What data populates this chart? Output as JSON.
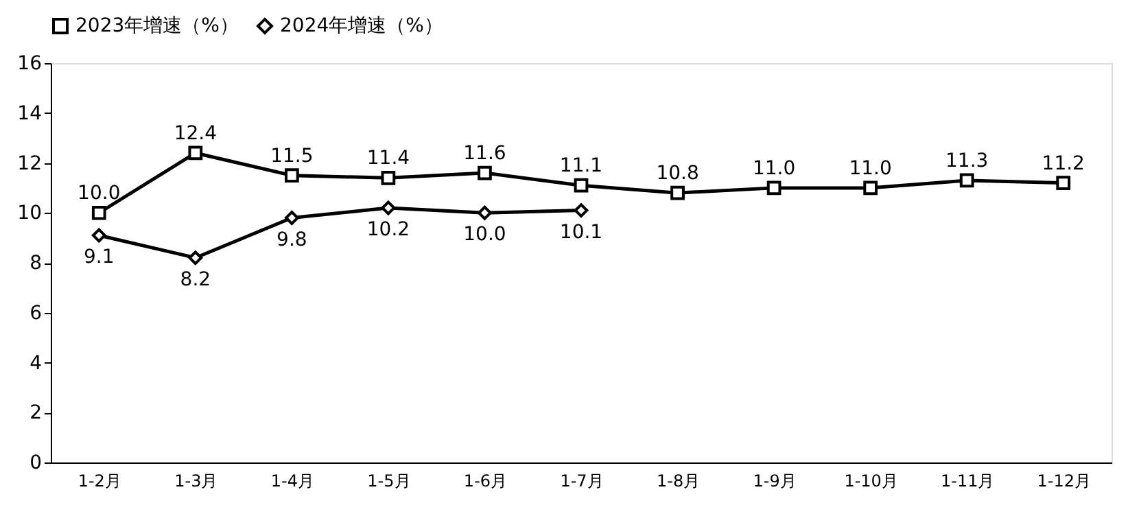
{
  "chart_data": {
    "type": "line",
    "categories": [
      "1-2月",
      "1-3月",
      "1-4月",
      "1-5月",
      "1-6月",
      "1-7月",
      "1-8月",
      "1-9月",
      "1-10月",
      "1-11月",
      "1-12月"
    ],
    "series": [
      {
        "name": "2023年增速（%）",
        "color": "#000000",
        "marker": "square",
        "values": [
          10.0,
          12.4,
          11.5,
          11.4,
          11.6,
          11.1,
          10.8,
          11.0,
          11.0,
          11.3,
          11.2
        ],
        "value_labels": [
          "10.0",
          "12.4",
          "11.5",
          "11.4",
          "11.6",
          "11.1",
          "10.8",
          "11.0",
          "11.0",
          "11.3",
          "11.2"
        ]
      },
      {
        "name": "2024年增速（%）",
        "color": "#000000",
        "marker": "diamond",
        "values": [
          9.1,
          8.2,
          9.8,
          10.2,
          10.0,
          10.1,
          null,
          null,
          null,
          null,
          null
        ],
        "value_labels": [
          "9.1",
          "8.2",
          "9.8",
          "10.2",
          "10.0",
          "10.1",
          null,
          null,
          null,
          null,
          null
        ]
      }
    ],
    "ylim": [
      0,
      16
    ],
    "yticks": [
      0,
      2,
      4,
      6,
      8,
      10,
      12,
      14,
      16
    ],
    "grid": false,
    "legend": "top",
    "line_style": "solid"
  }
}
